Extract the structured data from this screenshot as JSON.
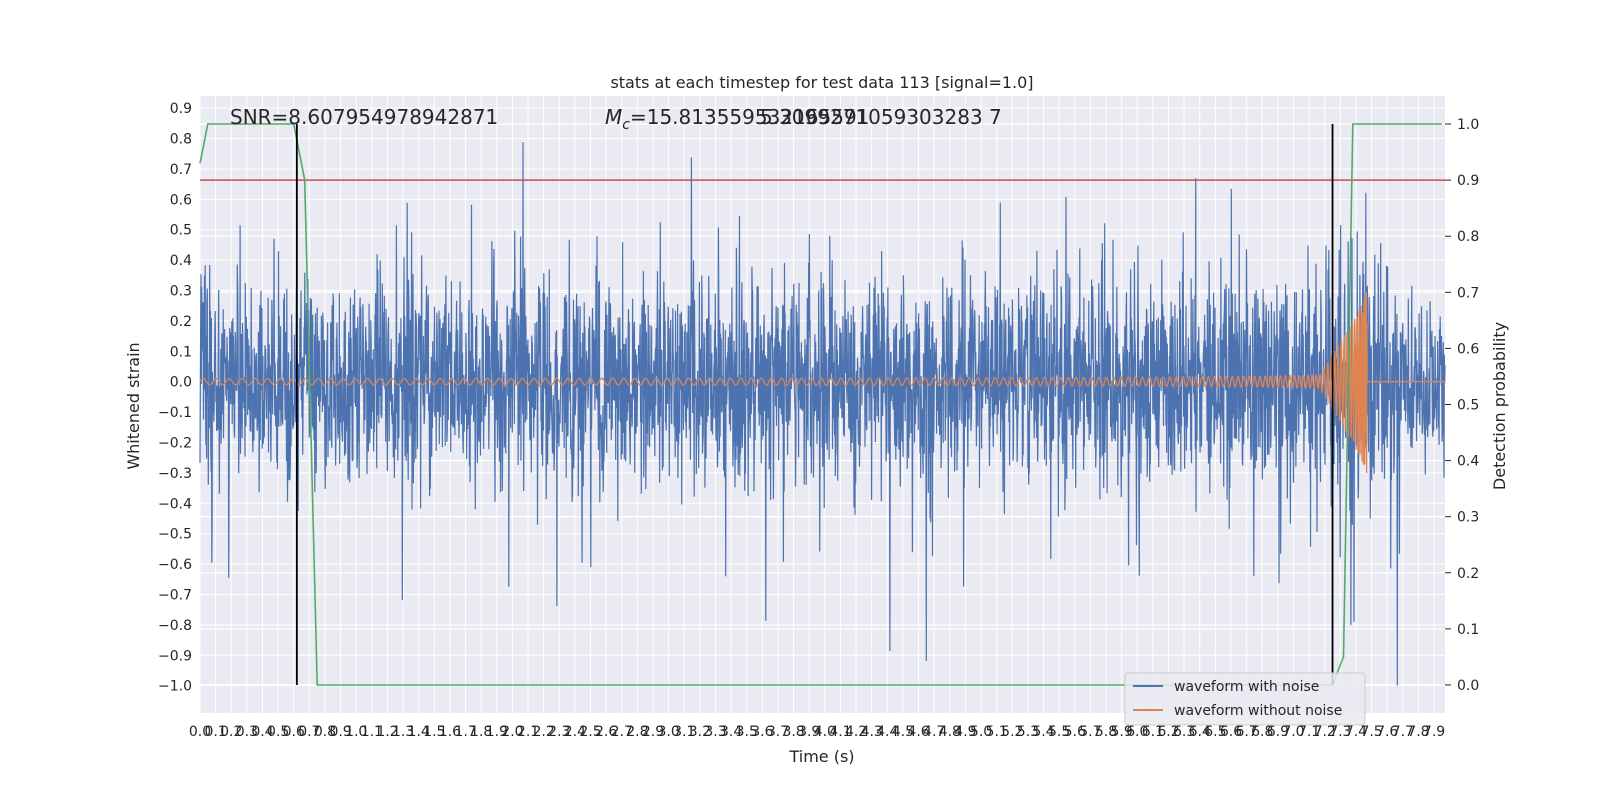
{
  "chart_data": {
    "type": "line",
    "title": "stats at each timestep for test data 113 [signal=1.0]",
    "xlabel": "Time (s)",
    "ylabel": "Whitened strain",
    "y2label": "Detection probability",
    "annotations": {
      "snr": "SNR=8.607954978942871",
      "mc_symbol": "M",
      "mc_sub": "c",
      "mc_value": "=15.813559532165591",
      "mc_overlap": "5.3099271059303283 7"
    },
    "xlim": [
      0,
      7.97
    ],
    "ylim": [
      -1.09,
      0.94
    ],
    "y2lim": [
      -0.05,
      1.05
    ],
    "x_ticks": [
      "0.0",
      "0.1",
      "0.2",
      "0.3",
      "0.4",
      "0.5",
      "0.6",
      "0.7",
      "0.8",
      "0.9",
      "1.0",
      "1.1",
      "1.2",
      "1.3",
      "1.4",
      "1.5",
      "1.6",
      "1.7",
      "1.8",
      "1.9",
      "2.0",
      "2.1",
      "2.2",
      "2.3",
      "2.4",
      "2.5",
      "2.6",
      "2.7",
      "2.8",
      "2.9",
      "3.0",
      "3.1",
      "3.2",
      "3.3",
      "3.4",
      "3.5",
      "3.6",
      "3.7",
      "3.8",
      "3.9",
      "4.0",
      "4.1",
      "4.2",
      "4.3",
      "4.4",
      "4.5",
      "4.6",
      "4.7",
      "4.8",
      "4.9",
      "5.0",
      "5.1",
      "5.2",
      "5.3",
      "5.4",
      "5.5",
      "5.6",
      "5.7",
      "5.8",
      "5.9",
      "6.0",
      "6.1",
      "6.2",
      "6.3",
      "6.4",
      "6.5",
      "6.6",
      "6.7",
      "6.8",
      "6.9",
      "7.0",
      "7.1",
      "7.2",
      "7.3",
      "7.4",
      "7.5",
      "7.6",
      "7.7",
      "7.8",
      "7.9"
    ],
    "x_ticks_shown": "0.00.10.20.30.40.50.60.70.80.91.01.11.21.31.41.51.61.71.81.92.02.12.22.32.42.52.62.72.82.93.03.13.23.33.43.53.63.73.83.94.04.14.24.34.44.54.64.74.84.95.05.15.25.35.45.55.65.75.85.96.06.16.26.36.46.56.66.76.86.97.07.17.27.37.47.57.67.77.87.9",
    "y_ticks": [
      "0.9",
      "0.8",
      "0.7",
      "0.6",
      "0.5",
      "0.4",
      "0.3",
      "0.2",
      "0.1",
      "0.0",
      "−0.1",
      "−0.2",
      "−0.3",
      "−0.4",
      "−0.5",
      "−0.6",
      "−0.7",
      "−0.8",
      "−0.9",
      "−1.0"
    ],
    "y2_ticks": [
      "1.0",
      "0.9",
      "0.8",
      "0.7",
      "0.6",
      "0.5",
      "0.4",
      "0.3",
      "0.2",
      "0.1",
      "0.0"
    ],
    "series": [
      {
        "name": "waveform with noise",
        "color": "#4c72b0",
        "kind": "noisy strain, values mostly within [-0.45, 0.45], peaks to about 0.85 and down to about -1.0"
      },
      {
        "name": "waveform without noise",
        "color": "#dd8452",
        "kind": "chirp, amplitude growing from about 0.01 near 0 s to about 0.38 at merger near 7.47 s, then zero"
      },
      {
        "name": "",
        "color": "#55a868",
        "axis": "right",
        "x": [
          0,
          0.05,
          0.1,
          0.6,
          0.67,
          0.75,
          7.05,
          7.25,
          7.32,
          7.38,
          7.95
        ],
        "y": [
          0.93,
          1.0,
          1.0,
          1.0,
          0.9,
          0.0,
          0.0,
          0.0,
          0.05,
          1.0,
          1.0
        ]
      }
    ],
    "threshold_line": {
      "color": "#c44e52",
      "y_right": 0.9
    },
    "vertical_markers_x": [
      0.62,
      7.25
    ],
    "grid": true,
    "legend_position": "lower right"
  }
}
